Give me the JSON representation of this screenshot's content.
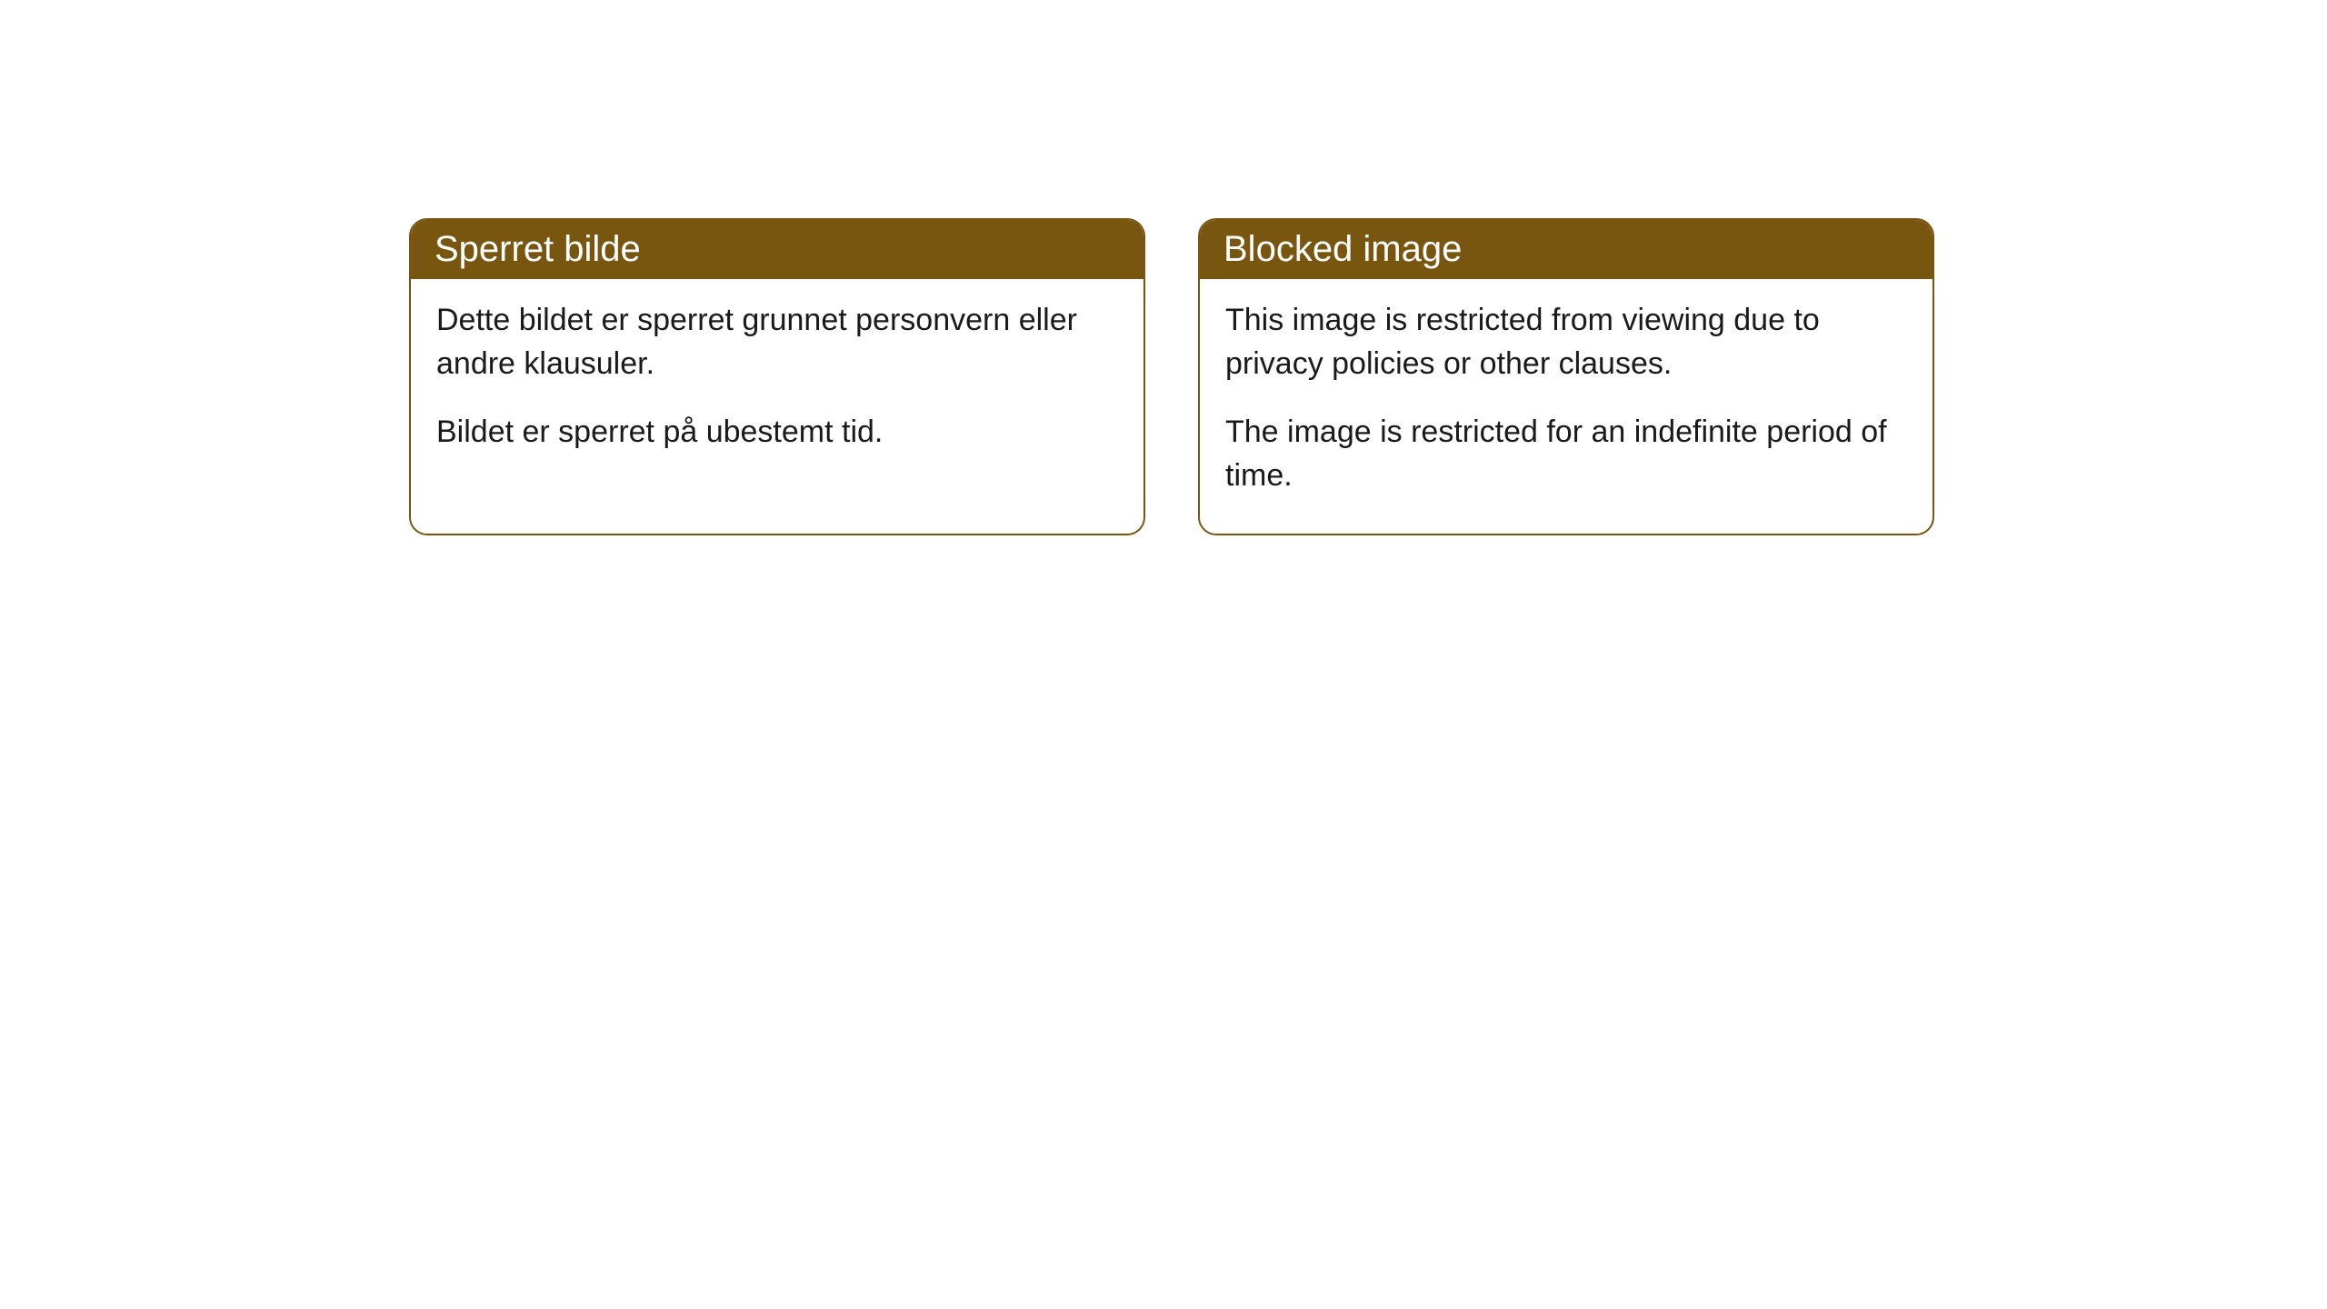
{
  "cards": [
    {
      "title": "Sperret bilde",
      "paragraph1": "Dette bildet er sperret grunnet personvern eller andre klausuler.",
      "paragraph2": "Bildet er sperret på ubestemt tid."
    },
    {
      "title": "Blocked image",
      "paragraph1": "This image is restricted from viewing due to privacy policies or other clauses.",
      "paragraph2": "The image is restricted for an indefinite period of time."
    }
  ],
  "colors": {
    "header_bg": "#78560f",
    "header_text": "#ffffff",
    "border": "#78560f",
    "body_bg": "#ffffff",
    "body_text": "#1a1a1a"
  }
}
